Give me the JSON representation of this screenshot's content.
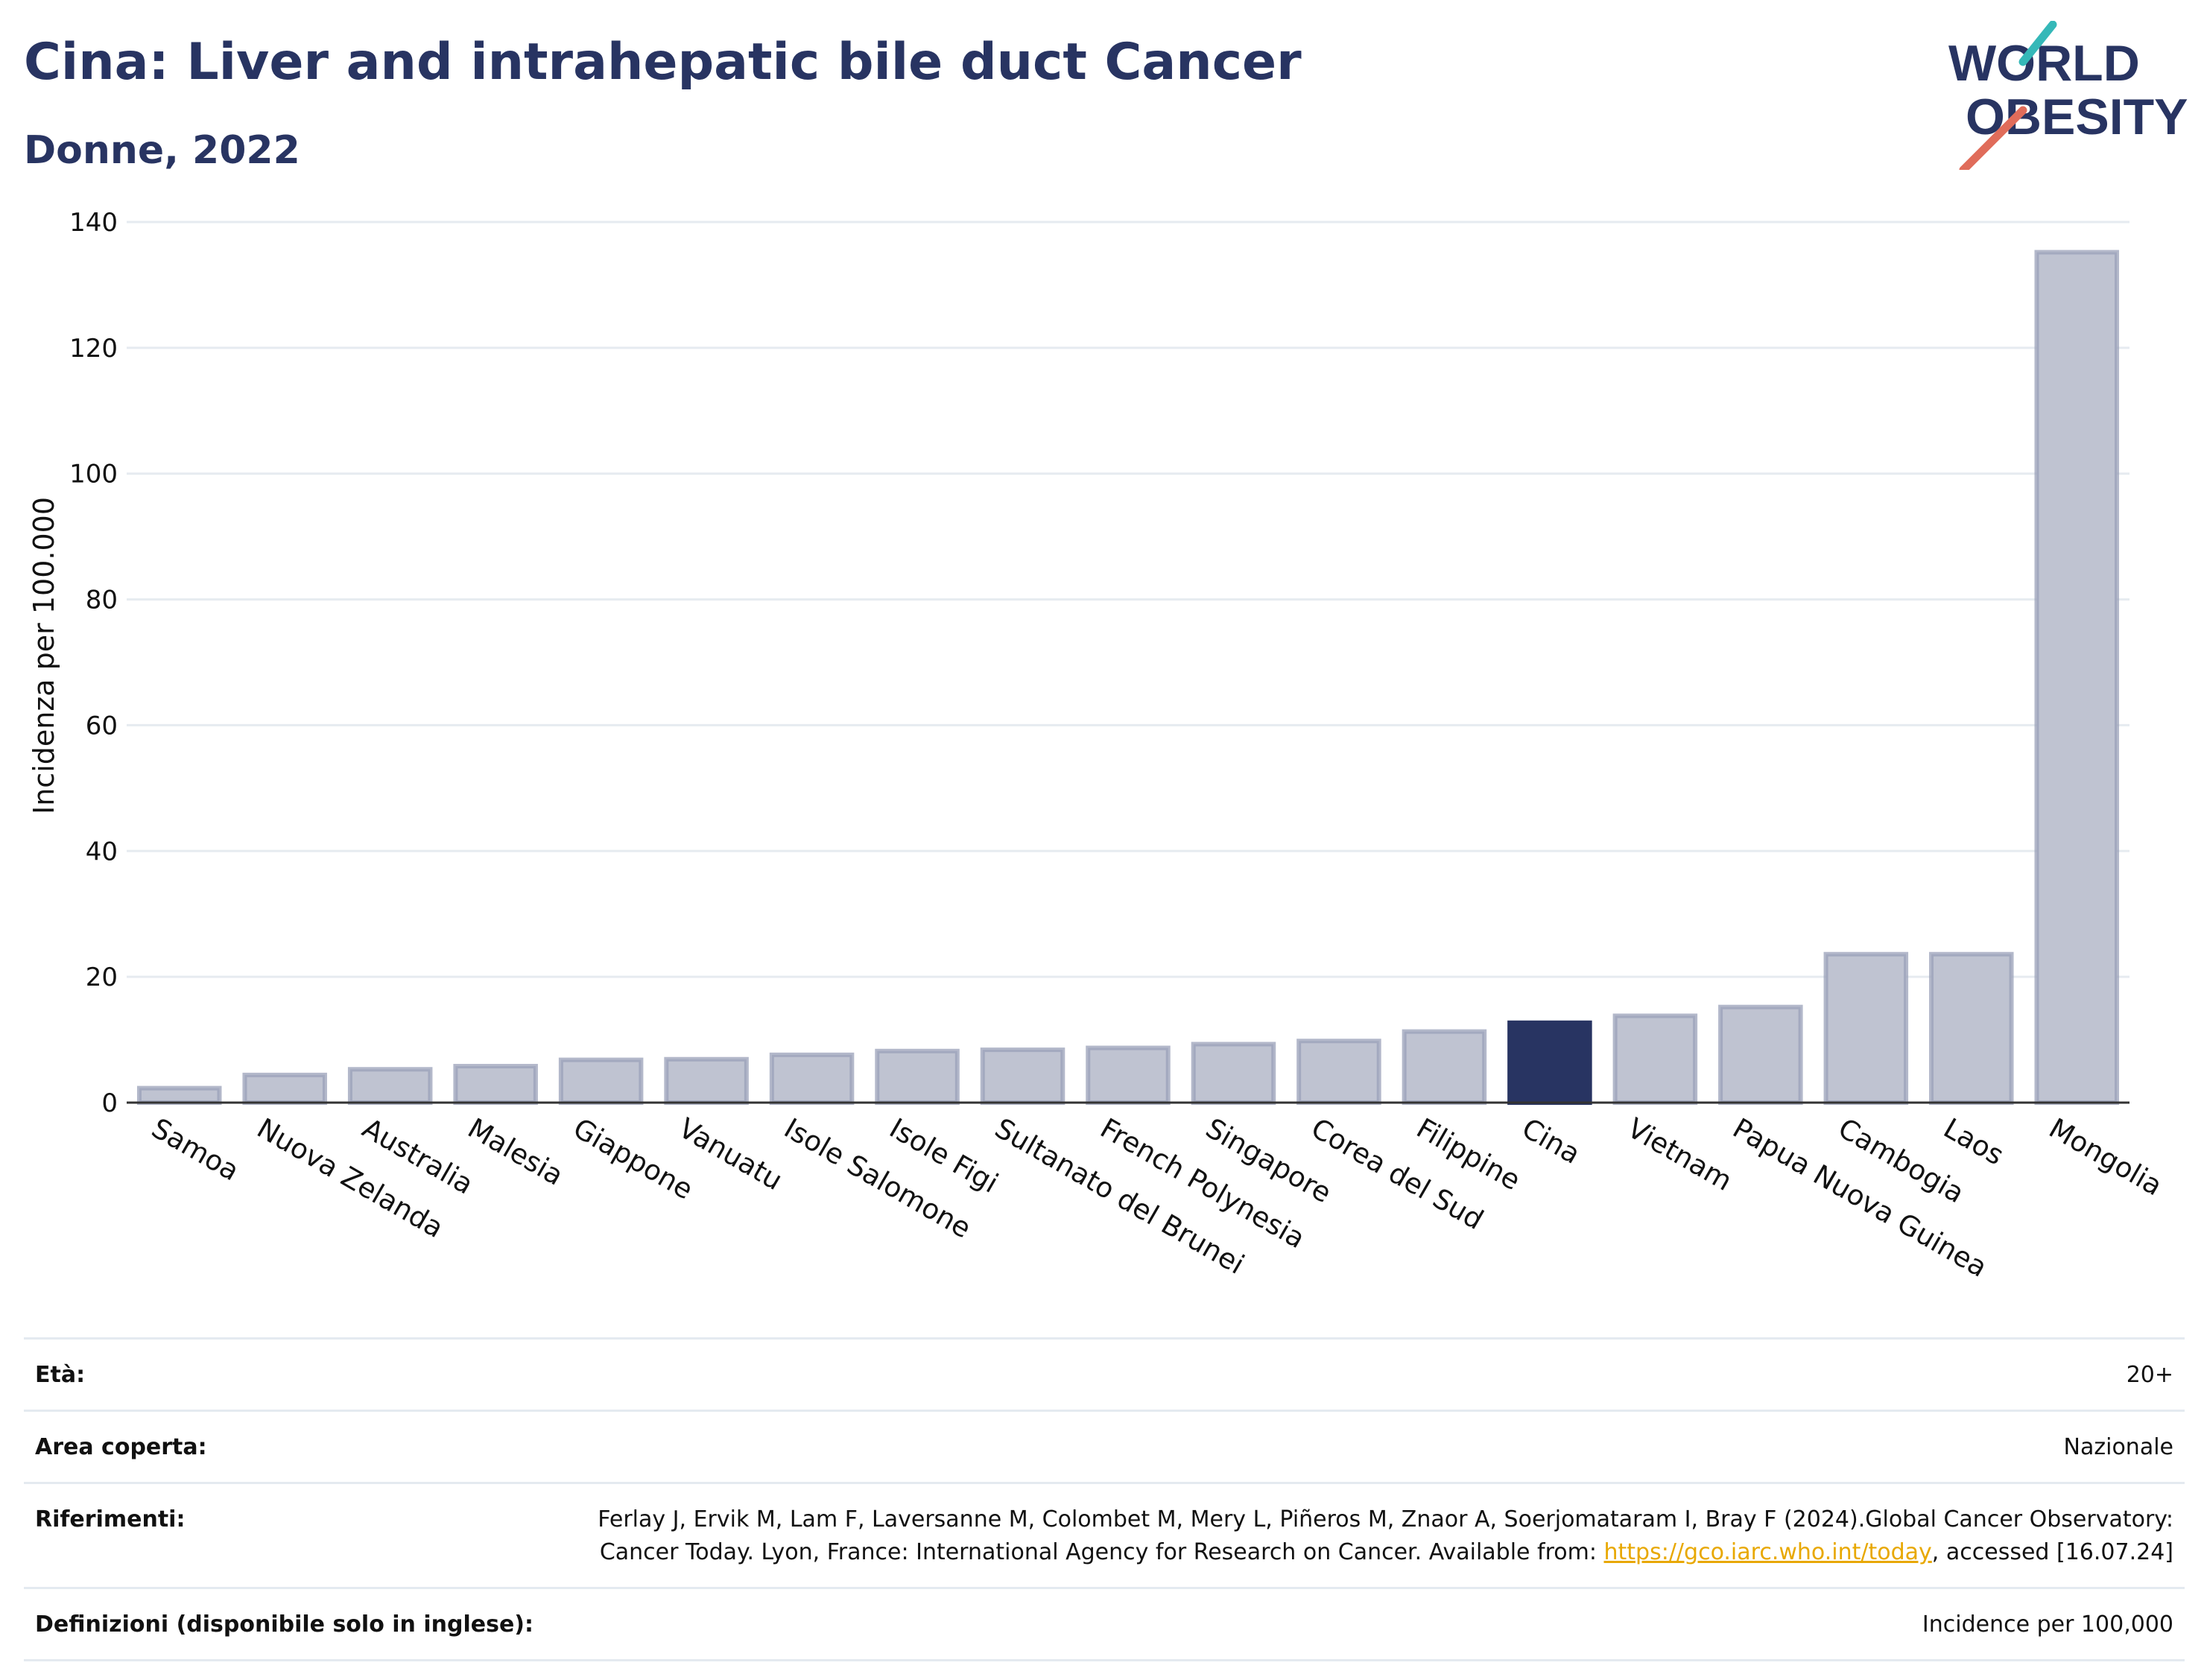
{
  "header": {
    "title": "Cina: Liver and intrahepatic bile duct Cancer",
    "subtitle": "Donne, 2022"
  },
  "logo": {
    "line1": "WORLD",
    "line2": "OBESITY"
  },
  "chart_data": {
    "type": "bar",
    "title": "Cina: Liver and intrahepatic bile duct Cancer",
    "subtitle": "Donne, 2022",
    "xlabel": "",
    "ylabel": "Incidenza per 100.000",
    "ylim": [
      0,
      140
    ],
    "yticks": [
      0,
      20,
      40,
      60,
      80,
      100,
      120,
      140
    ],
    "grid": true,
    "legend": "none",
    "highlight": "Cina",
    "colors": {
      "bar": "#bfc3d1",
      "bar_edge": "#9aa0b8",
      "highlight": "#283462",
      "grid": "#e6ebf0",
      "axis": "#333333"
    },
    "categories": [
      "Samoa",
      "Nuova Zelanda",
      "Australia",
      "Malesia",
      "Giappone",
      "Vanuatu",
      "Isole Salomone",
      "Isole Figi",
      "Sultanato del Brunei",
      "French Polynesia",
      "Singapore",
      "Corea del Sud",
      "Filippine",
      "Cina",
      "Vietnam",
      "Papua Nuova Guinea",
      "Cambogia",
      "Laos",
      "Mongolia"
    ],
    "values": [
      2.3,
      4.4,
      5.3,
      5.8,
      6.8,
      6.9,
      7.6,
      8.2,
      8.4,
      8.7,
      9.3,
      9.8,
      11.3,
      12.7,
      13.8,
      15.2,
      23.6,
      23.6,
      135.2
    ]
  },
  "meta": {
    "age_label": "Età:",
    "age_value": "20+",
    "area_label": "Area coperta:",
    "area_value": "Nazionale",
    "ref_label": "Riferimenti:",
    "ref_text": "Ferlay J, Ervik M, Lam F, Laversanne M, Colombet M, Mery L, Piñeros M, Znaor A, Soerjomataram I, Bray F (2024).Global Cancer Observatory: Cancer Today. Lyon, France: International Agency for Research on Cancer. Available from: ",
    "ref_link": "https://gco.iarc.who.int/today",
    "ref_tail": ", accessed [16.07.24]",
    "def_label": "Definizioni (disponibile solo in inglese):",
    "def_value": "Incidence per 100,000"
  }
}
